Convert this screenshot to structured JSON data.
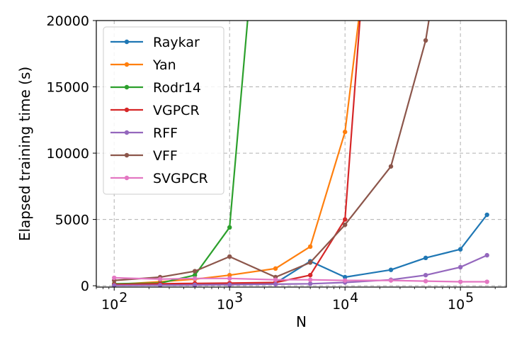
{
  "chart_data": {
    "type": "line",
    "xlabel": "N",
    "ylabel": "Elapsed training time (s)",
    "xscale": "log",
    "xlim": [
      70,
      250000
    ],
    "ylim": [
      -100,
      20000
    ],
    "x_ticks": [
      {
        "value": 100,
        "base": "10",
        "exp": "2"
      },
      {
        "value": 1000,
        "base": "10",
        "exp": "3"
      },
      {
        "value": 10000,
        "base": "10",
        "exp": "4"
      },
      {
        "value": 100000,
        "base": "10",
        "exp": "5"
      }
    ],
    "y_ticks": [
      "0",
      "5000",
      "10000",
      "15000",
      "20000"
    ],
    "grid": true,
    "legend_position": "upper-left",
    "series": [
      {
        "name": "Raykar",
        "color": "#1f77b4",
        "x": [
          100,
          250,
          500,
          1000,
          2500,
          5000,
          10000,
          25000,
          50000,
          100000,
          170000
        ],
        "y": [
          50,
          60,
          70,
          100,
          200,
          1850,
          650,
          1200,
          2100,
          2750,
          5350
        ]
      },
      {
        "name": "Yan",
        "color": "#ff7f0e",
        "x": [
          100,
          250,
          500,
          1000,
          2500,
          5000,
          10000,
          14000
        ],
        "y": [
          100,
          300,
          500,
          800,
          1300,
          2950,
          11600,
          22000
        ]
      },
      {
        "name": "Rodr14",
        "color": "#2ca02c",
        "x": [
          100,
          250,
          500,
          1000,
          1500
        ],
        "y": [
          150,
          200,
          800,
          4400,
          22000
        ]
      },
      {
        "name": "VGPCR",
        "color": "#d62728",
        "x": [
          100,
          250,
          500,
          1000,
          2500,
          5000,
          10000,
          14000
        ],
        "y": [
          100,
          150,
          180,
          200,
          250,
          800,
          5000,
          22000
        ]
      },
      {
        "name": "RFF",
        "color": "#9467bd",
        "x": [
          100,
          250,
          500,
          1000,
          2500,
          5000,
          10000,
          25000,
          50000,
          100000,
          170000
        ],
        "y": [
          30,
          40,
          60,
          80,
          120,
          150,
          250,
          450,
          800,
          1400,
          2300
        ]
      },
      {
        "name": "VFF",
        "color": "#8c564b",
        "x": [
          100,
          250,
          500,
          1000,
          2500,
          5000,
          10000,
          25000,
          50000,
          58000
        ],
        "y": [
          400,
          650,
          1100,
          2200,
          650,
          1750,
          4600,
          9000,
          18500,
          22000
        ]
      },
      {
        "name": "SVGPCR",
        "color": "#e377c2",
        "x": [
          100,
          250,
          500,
          1000,
          2500,
          5000,
          10000,
          25000,
          50000,
          100000,
          170000
        ],
        "y": [
          600,
          500,
          550,
          550,
          450,
          450,
          400,
          400,
          350,
          300,
          300
        ]
      }
    ]
  }
}
